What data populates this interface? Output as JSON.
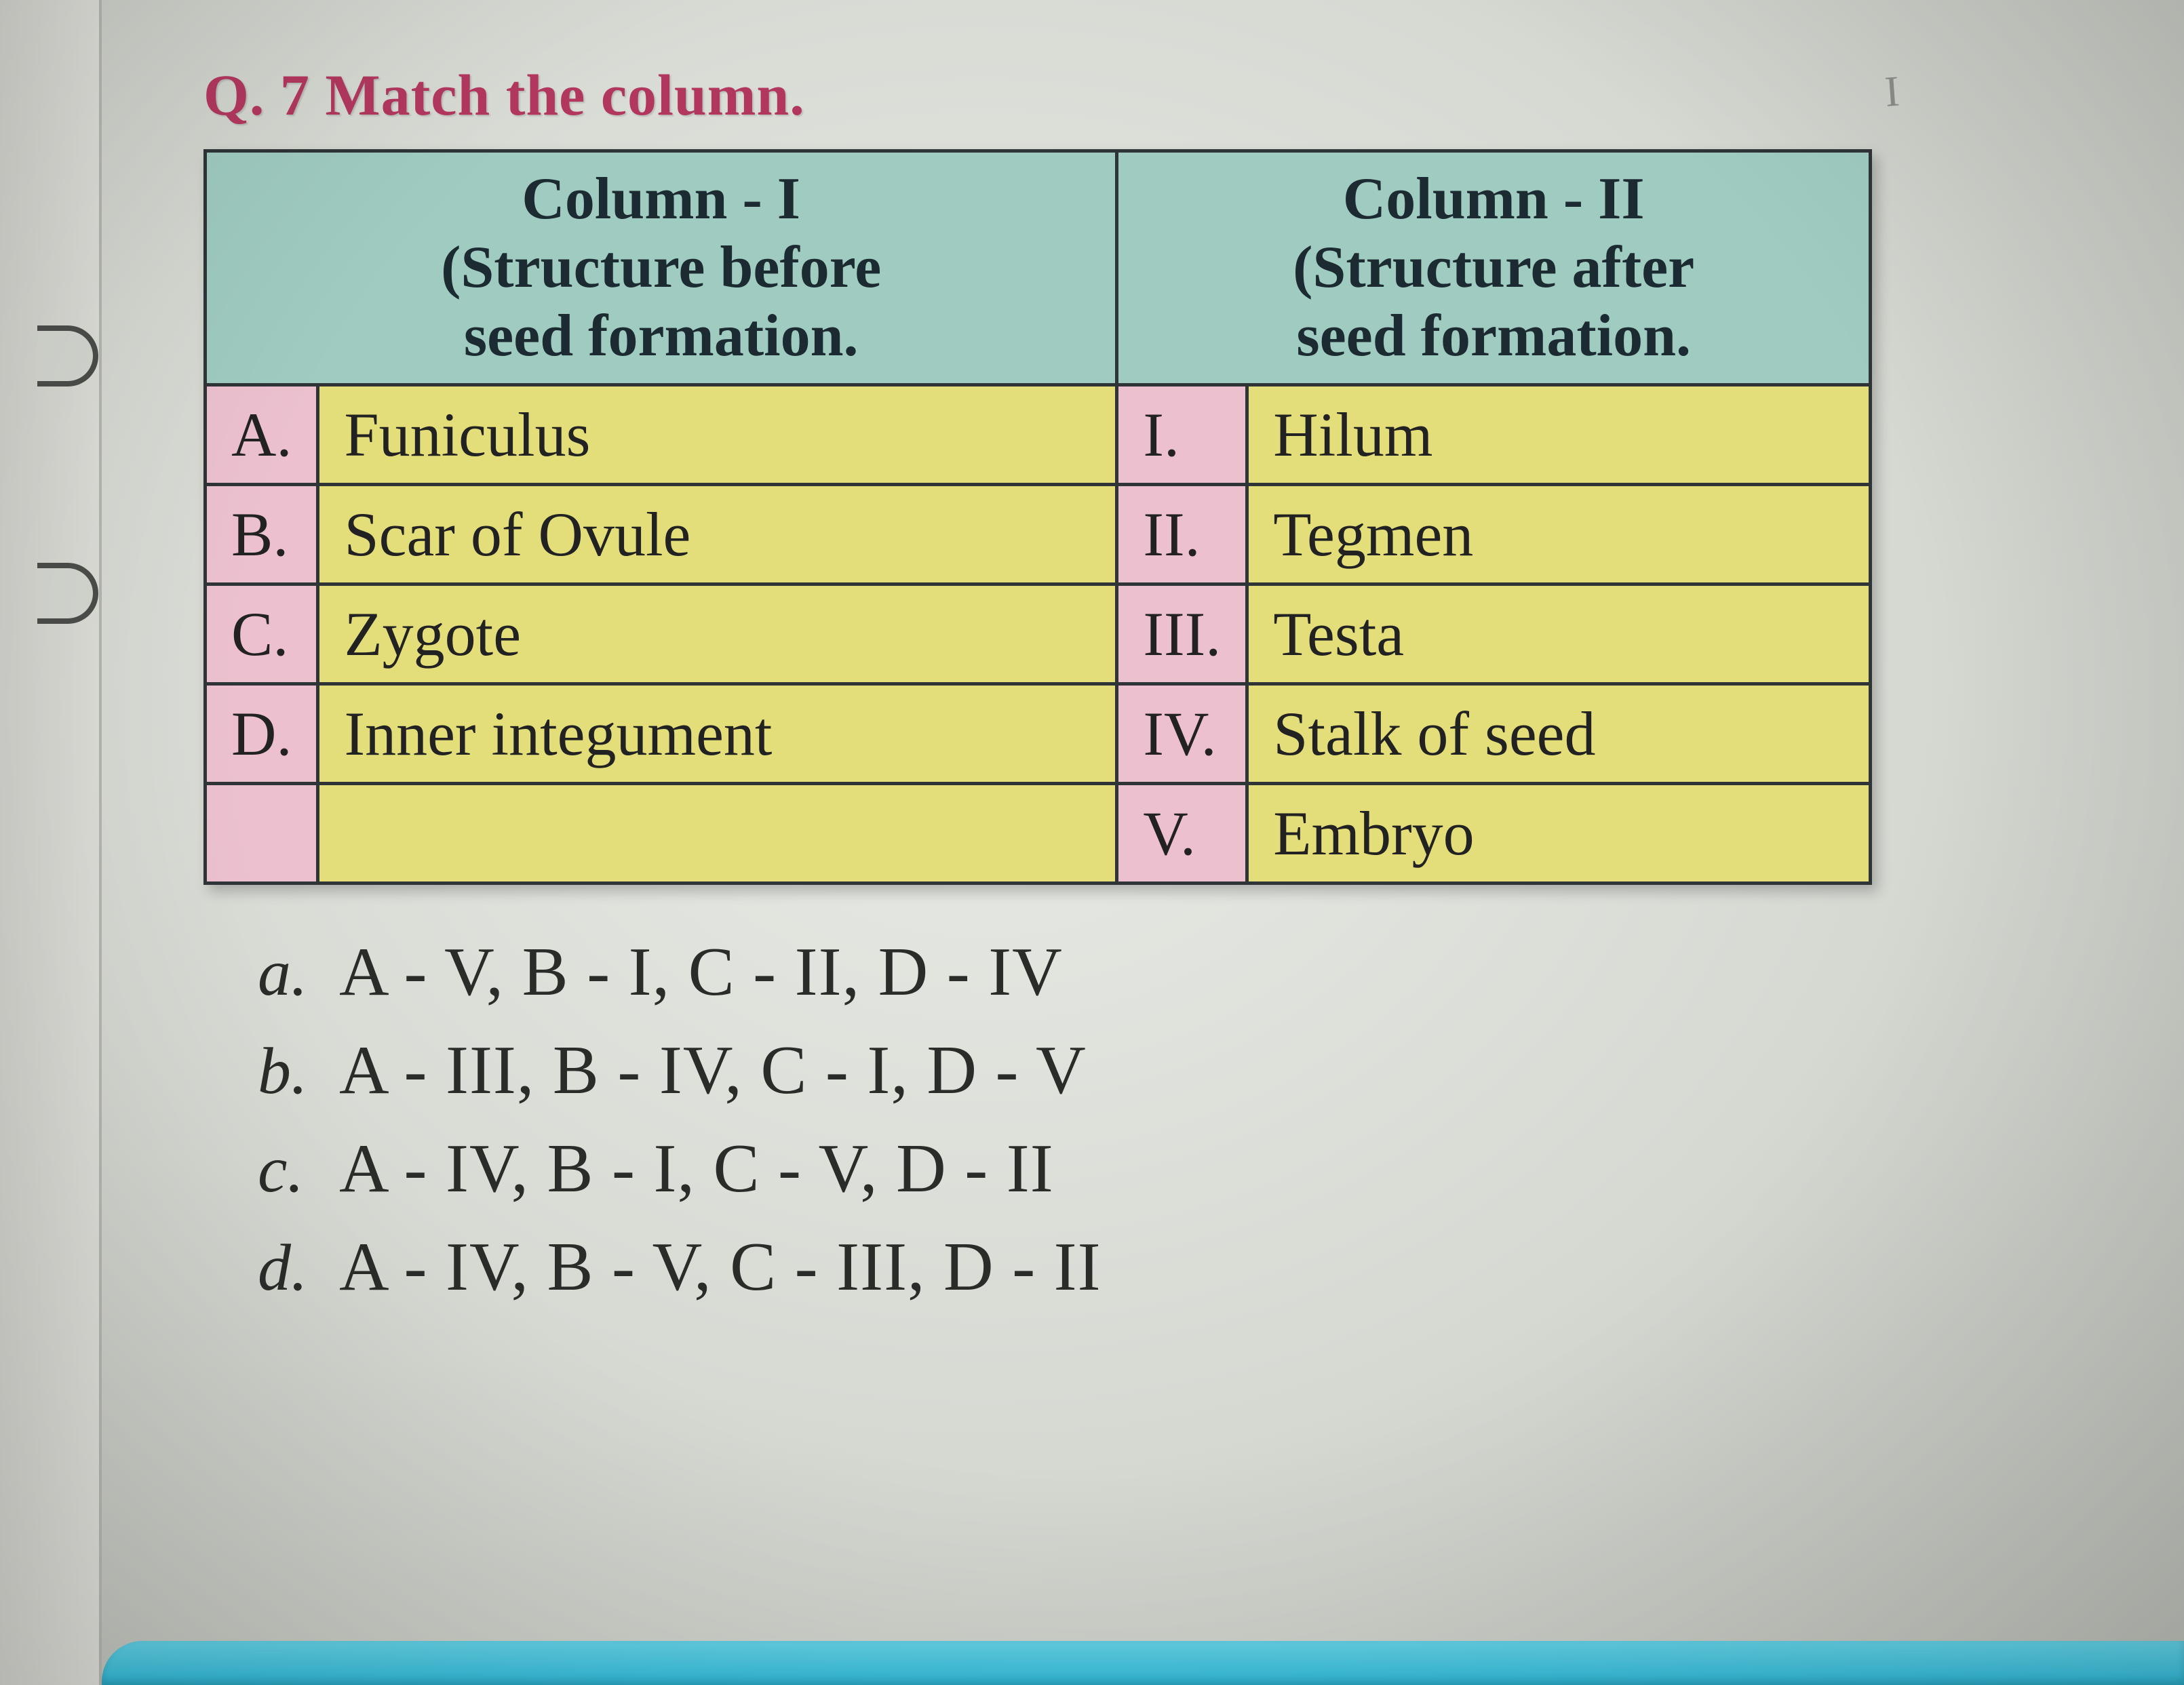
{
  "question": {
    "label": "Q. 7 Match the column."
  },
  "handwritten": "I",
  "table": {
    "header": {
      "col1_line1": "Column - I",
      "col1_line2": "(Structure before",
      "col1_line3": "seed formation.",
      "col2_line1": "Column - II",
      "col2_line2": "(Structure after",
      "col2_line3": "seed formation.",
      "header_bg": "#9fcbc0",
      "index_bg": "#ecc0cf",
      "value_bg": "#e3de7a",
      "border_color": "#2f3436",
      "header_fontsize": 88,
      "body_fontsize": 92
    },
    "rows": [
      {
        "aIdx": "A.",
        "aVal": "Funiculus",
        "bIdx": "I.",
        "bVal": "Hilum"
      },
      {
        "aIdx": "B.",
        "aVal": "Scar of Ovule",
        "bIdx": "II.",
        "bVal": "Tegmen"
      },
      {
        "aIdx": "C.",
        "aVal": "Zygote",
        "bIdx": "III.",
        "bVal": "Testa"
      },
      {
        "aIdx": "D.",
        "aVal": "Inner integument",
        "bIdx": "IV.",
        "bVal": "Stalk of seed"
      },
      {
        "aIdx": "",
        "aVal": "",
        "bIdx": "V.",
        "bVal": "Embryo"
      }
    ]
  },
  "options": [
    {
      "letter": "a.",
      "text": "A - V, B - I, C - II, D - IV"
    },
    {
      "letter": "b.",
      "text": "A - III, B - IV, C - I, D - V"
    },
    {
      "letter": "c.",
      "text": "A - IV, B - I, C - V, D - II"
    },
    {
      "letter": "d.",
      "text": "A - IV, B - V, C - III, D - II"
    }
  ],
  "colors": {
    "page_bg": "#d8d9d4",
    "question_label": "#b2375f",
    "option_text": "#2a2c2a",
    "bottom_bar": "#2fb7d6"
  }
}
